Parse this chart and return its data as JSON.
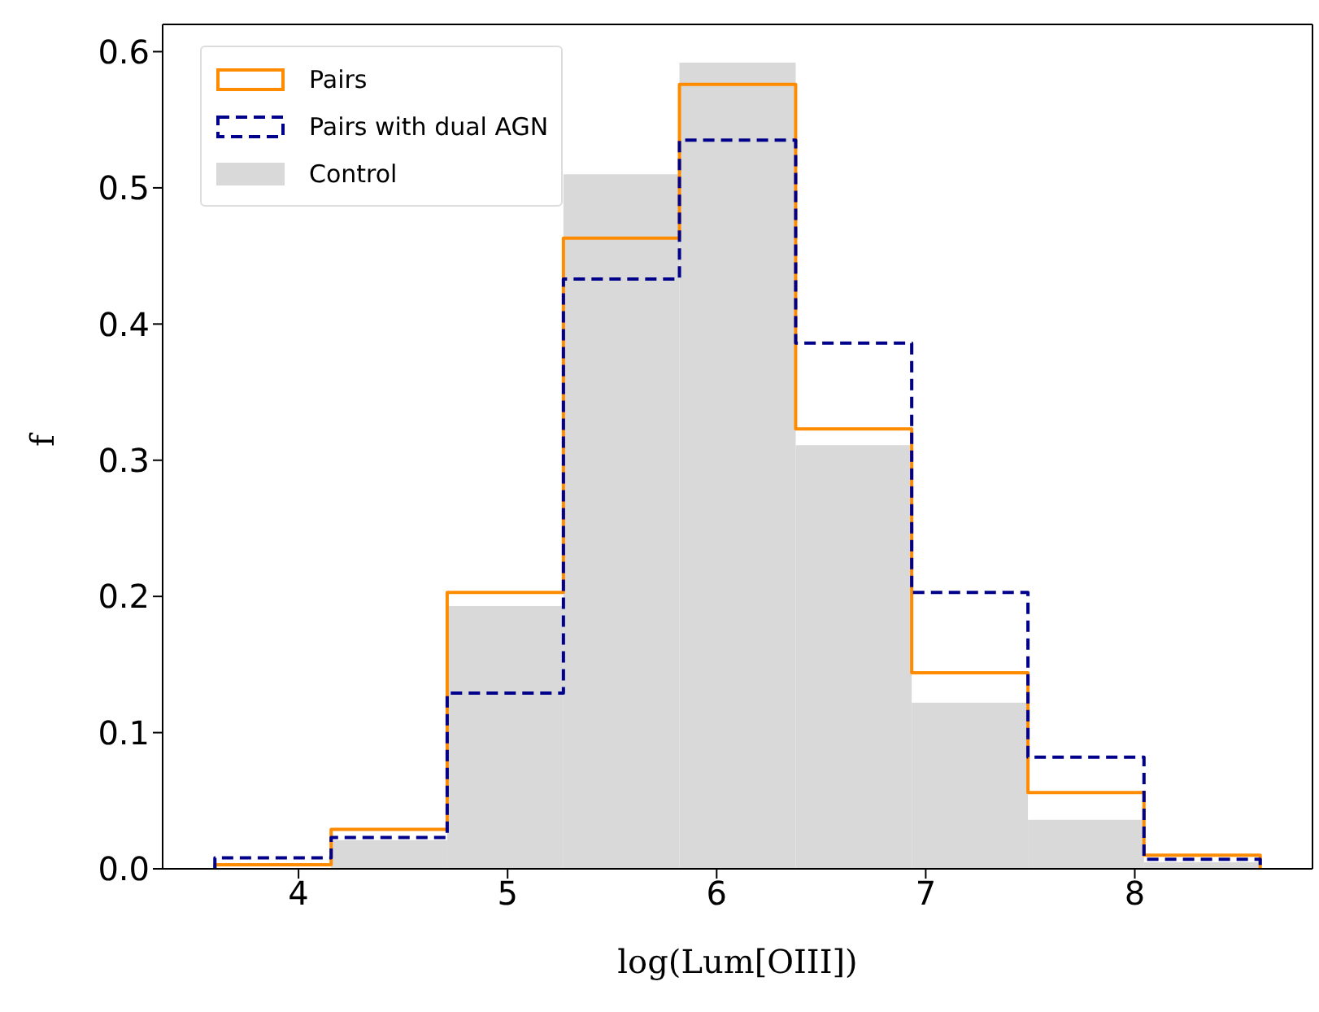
{
  "chart_data": {
    "type": "histogram",
    "xlabel": "log(Lum[OIII])",
    "ylabel": "f",
    "bins": [
      3.6,
      4.156,
      4.711,
      5.267,
      5.822,
      6.378,
      6.933,
      7.489,
      8.044,
      8.6
    ],
    "series": [
      {
        "name": "Pairs",
        "color": "#ff8c00",
        "line_style": "solid",
        "values": [
          0.003,
          0.029,
          0.203,
          0.463,
          0.576,
          0.323,
          0.144,
          0.056,
          0.01
        ]
      },
      {
        "name": "Pairs with dual AGN",
        "color": "#00008b",
        "line_style": "dashed",
        "values": [
          0.008,
          0.023,
          0.129,
          0.433,
          0.535,
          0.386,
          0.203,
          0.082,
          0.007
        ]
      },
      {
        "name": "Control",
        "color": "#d9d9d9",
        "values": [
          null,
          0.021,
          0.193,
          0.51,
          0.592,
          0.311,
          0.122,
          0.036,
          0.005
        ]
      }
    ],
    "xlim": [
      3.35,
      8.85
    ],
    "xticks": [
      4,
      5,
      6,
      7,
      8
    ],
    "ylim": [
      0,
      0.62
    ],
    "yticks": [
      {
        "value": 0,
        "label": "0.0"
      },
      {
        "value": 0.1,
        "label": "0.1"
      },
      {
        "value": 0.2,
        "label": "0.2"
      },
      {
        "value": 0.3,
        "label": "0.3"
      },
      {
        "value": 0.4,
        "label": "0.4"
      },
      {
        "value": 0.5,
        "label": "0.5"
      },
      {
        "value": 0.6,
        "label": "0.6"
      }
    ],
    "legend": "top left",
    "grid": false
  }
}
